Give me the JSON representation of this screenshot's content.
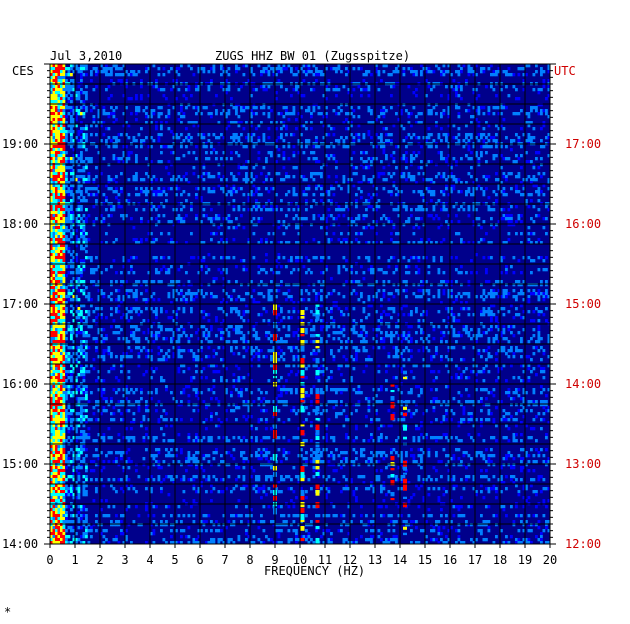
{
  "chart_data": {
    "type": "heatmap",
    "header": {
      "date": "Jul 3,2010",
      "station": "ZUGS HHZ BW 01 (Zugsspitze)"
    },
    "left_zone_label": "CES",
    "right_zone_label": "UTC",
    "xlabel": "FREQUENCY (HZ)",
    "xlim": [
      0,
      20
    ],
    "x_ticks": [
      "0",
      "1",
      "2",
      "3",
      "4",
      "5",
      "6",
      "7",
      "8",
      "9",
      "10",
      "11",
      "12",
      "13",
      "14",
      "15",
      "16",
      "17",
      "18",
      "19",
      "20"
    ],
    "left_time_ticks": [
      "19:00",
      "18:00",
      "17:00",
      "16:00",
      "15:00",
      "14:00"
    ],
    "right_time_ticks": [
      "17:00",
      "16:00",
      "15:00",
      "14:00",
      "13:00",
      "12:00"
    ],
    "time_range_ces": [
      "14:00",
      "20:00"
    ],
    "colormap": [
      "#00008b",
      "#0000ff",
      "#0080ff",
      "#00ffff",
      "#ffff00",
      "#ff0000"
    ],
    "background_color": "#00008b",
    "noise_bands_hz": [
      {
        "freq": 10.1,
        "from": "14:00",
        "to": "17:00"
      },
      {
        "freq": 10.7,
        "from": "14:00",
        "to": "17:00"
      },
      {
        "freq": 14.2,
        "from": "14:00",
        "to": "16:10"
      },
      {
        "freq": 13.7,
        "from": "14:30",
        "to": "16:00"
      },
      {
        "freq": 9.0,
        "from": "14:20",
        "to": "17:00"
      }
    ],
    "footer_mark": "*"
  }
}
